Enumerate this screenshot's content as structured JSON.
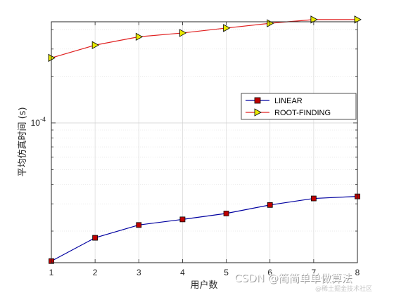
{
  "chart_data": {
    "type": "line",
    "xlabel": "用户数",
    "ylabel": "平均仿真时间 (s)",
    "x": [
      1,
      2,
      3,
      4,
      5,
      6,
      7,
      8
    ],
    "xlim": [
      1,
      8
    ],
    "x_ticks": [
      "1",
      "2",
      "3",
      "4",
      "5",
      "6",
      "7",
      "8"
    ],
    "y_scale": "log",
    "ylim": [
      1.25e-05,
      0.00045
    ],
    "y_tick_label": "10^-4",
    "grid": true,
    "legend_position": "center-right",
    "series": [
      {
        "name": "LINEAR",
        "color": "#0000a0",
        "marker": "square",
        "marker_color": "#c00000",
        "values": [
          1.28e-05,
          1.81e-05,
          2.19e-05,
          2.38e-05,
          2.6e-05,
          2.95e-05,
          3.25e-05,
          3.35e-05
        ]
      },
      {
        "name": "ROOT-FINDING",
        "color": "#e02020",
        "marker": "triangle-right",
        "marker_color": "#e8e800",
        "values": [
          0.000263,
          0.000318,
          0.00036,
          0.000381,
          0.00041,
          0.00044,
          0.000465,
          0.000465
        ]
      }
    ]
  },
  "watermark": {
    "text": "CSDN @简简单单做算法",
    "subtext": "@稀土掘金技术社区"
  }
}
